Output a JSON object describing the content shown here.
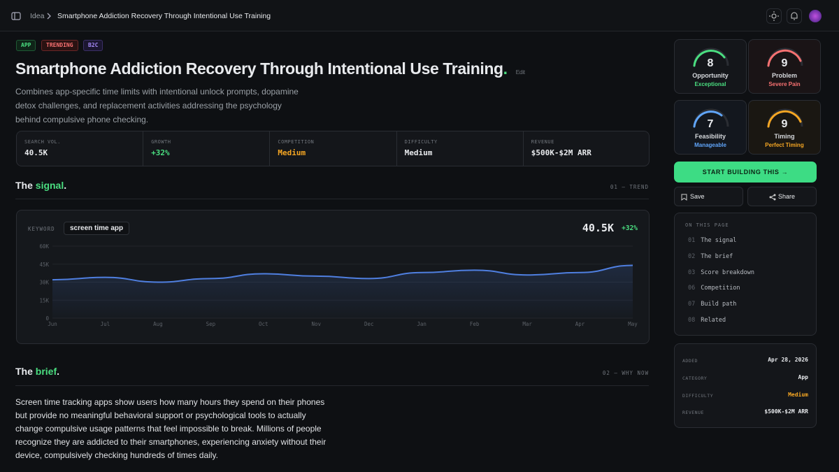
{
  "breadcrumb": {
    "parent": "Idea",
    "current": "Smartphone Addiction Recovery Through Intentional Use Training"
  },
  "tags": [
    "APP",
    "TRENDING",
    "B2C"
  ],
  "header": {
    "title": "Smartphone Addiction Recovery Through Intentional Use Training",
    "title_dot": ".",
    "edit": "Edit",
    "description": "Combines app-specific time limits with intentional unlock prompts, dopamine detox challenges, and replacement activities addressing the psychology behind compulsive phone checking."
  },
  "metrics": [
    {
      "label": "SEARCH VOL.",
      "value": "40.5K"
    },
    {
      "label": "GROWTH",
      "value": "+32%"
    },
    {
      "label": "COMPETITION",
      "value": "Medium"
    },
    {
      "label": "DIFFICULTY",
      "value": "Medium"
    },
    {
      "label": "REVENUE",
      "value": "$500K-$2M ARR"
    }
  ],
  "signal_section": {
    "prefix": "The",
    "highlight": "signal",
    "suffix": ".",
    "tag": "01 — TREND"
  },
  "trend_chart": {
    "type": "line",
    "keyword_label": "KEYWORD",
    "keyword": "screen time app",
    "headline_value": "40.5K",
    "headline_change": "+32%",
    "color": "#4f7fe0",
    "categories": [
      "Jun",
      "Jul",
      "Aug",
      "Sep",
      "Oct",
      "Nov",
      "Dec",
      "Jan",
      "Feb",
      "Mar",
      "Apr",
      "May"
    ],
    "values": [
      32000,
      34000,
      30000,
      33000,
      37000,
      35000,
      33000,
      38000,
      40000,
      36000,
      38000,
      44000
    ],
    "ylim": [
      0,
      60000
    ],
    "yticks": [
      0,
      {
        "value": 15000,
        "label": "15K"
      },
      {
        "value": 30000,
        "label": "30K"
      },
      {
        "value": 45000,
        "label": "45K"
      },
      {
        "value": 60000,
        "label": "60K"
      }
    ],
    "grid": true
  },
  "brief_section": {
    "prefix": "The",
    "highlight": "brief",
    "suffix": ".",
    "tag": "02 — WHY NOW",
    "body": "Screen time tracking apps show users how many hours they spend on their phones but provide no meaningful behavioral support or psychological tools to actually change compulsive usage patterns that feel impossible to break. Millions of people recognize they are addicted to their smartphones, experiencing anxiety without their device, compulsively checking hundreds of times daily."
  },
  "scores": [
    {
      "value": "8",
      "label": "Opportunity",
      "sub": "Exceptional"
    },
    {
      "value": "9",
      "label": "Problem",
      "sub": "Severe Pain"
    },
    {
      "value": "7",
      "label": "Feasibility",
      "sub": "Manageable"
    },
    {
      "value": "9",
      "label": "Timing",
      "sub": "Perfect Timing"
    }
  ],
  "actions": {
    "primary": "START BUILDING THIS →",
    "save": "Save",
    "share": "Share"
  },
  "toc": {
    "title": "ON THIS PAGE",
    "items": [
      {
        "num": "01",
        "label": "The signal"
      },
      {
        "num": "02",
        "label": "The brief"
      },
      {
        "num": "03",
        "label": "Score breakdown"
      },
      {
        "num": "06",
        "label": "Competition"
      },
      {
        "num": "07",
        "label": "Build path"
      },
      {
        "num": "08",
        "label": "Related"
      }
    ]
  },
  "details": [
    {
      "label": "ADDED",
      "value": "Apr 28, 2026"
    },
    {
      "label": "CATEGORY",
      "value": "App"
    },
    {
      "label": "DIFFICULTY",
      "value": "Medium"
    },
    {
      "label": "REVENUE",
      "value": "$500K-$2M ARR"
    }
  ]
}
